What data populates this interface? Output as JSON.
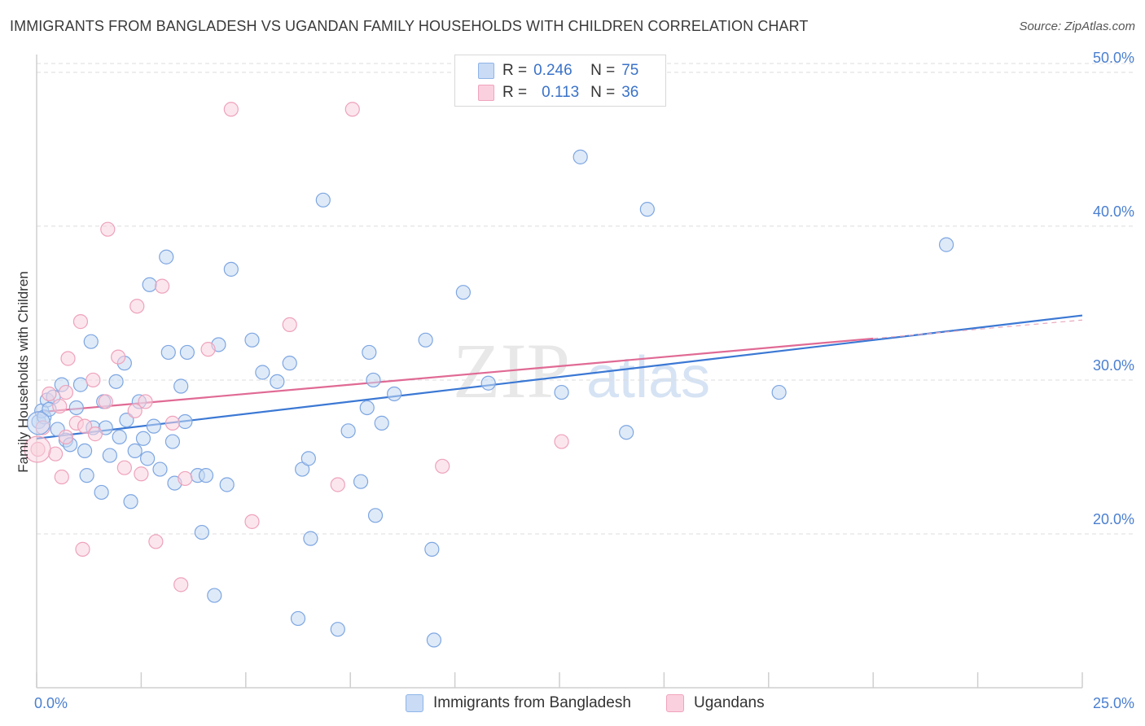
{
  "title": "IMMIGRANTS FROM BANGLADESH VS UGANDAN FAMILY HOUSEHOLDS WITH CHILDREN CORRELATION CHART",
  "source": "Source: ZipAtlas.com",
  "watermark": {
    "zip": "ZIP",
    "atlas": "atlas"
  },
  "legend": {
    "r_label": "R =",
    "n_label": "N =",
    "rows": [
      {
        "r": "0.246",
        "n": "75",
        "color": "#8fb4e8",
        "fill": "#c9dbf5"
      },
      {
        "r": "0.113",
        "n": "36",
        "color": "#f0a3bd",
        "fill": "#fbd0de"
      }
    ]
  },
  "bottom_legend": [
    "Immigrants from Bangladesh",
    "Ugandans"
  ],
  "chart_data": {
    "type": "scatter",
    "title": "IMMIGRANTS FROM BANGLADESH VS UGANDAN FAMILY HOUSEHOLDS WITH CHILDREN CORRELATION CHART",
    "xlabel": "",
    "ylabel": "Family Households with Children",
    "xlim": [
      0,
      25
    ],
    "ylim": [
      10,
      51
    ],
    "x_tick_labels": [
      "0.0%",
      "25.0%"
    ],
    "y_ticks": [
      20,
      30,
      40,
      50
    ],
    "y_tick_labels": [
      "20.0%",
      "30.0%",
      "40.0%",
      "50.0%"
    ],
    "grid": true,
    "legend_position": "top-center",
    "series": [
      {
        "name": "Immigrants from Bangladesh",
        "color": "#3b78d4",
        "marker_fill": "#c5d8f3",
        "marker_stroke": "#7da6e2",
        "trend": {
          "x": [
            0,
            25
          ],
          "y": [
            26.2,
            34.2
          ]
        },
        "points": [
          [
            0.05,
            27.3
          ],
          [
            0.12,
            28.0
          ],
          [
            0.18,
            27.6
          ],
          [
            0.25,
            28.7
          ],
          [
            0.4,
            28.9
          ],
          [
            0.5,
            26.8
          ],
          [
            0.6,
            29.7
          ],
          [
            0.7,
            26.1
          ],
          [
            0.8,
            25.8
          ],
          [
            0.95,
            28.2
          ],
          [
            1.05,
            29.7
          ],
          [
            1.15,
            25.4
          ],
          [
            1.2,
            23.8
          ],
          [
            1.3,
            32.5
          ],
          [
            1.35,
            26.9
          ],
          [
            1.55,
            22.7
          ],
          [
            1.6,
            28.6
          ],
          [
            1.65,
            26.9
          ],
          [
            1.75,
            25.1
          ],
          [
            1.9,
            29.9
          ],
          [
            1.98,
            26.3
          ],
          [
            2.1,
            31.1
          ],
          [
            2.15,
            27.4
          ],
          [
            2.25,
            22.1
          ],
          [
            2.35,
            25.4
          ],
          [
            2.45,
            28.6
          ],
          [
            2.55,
            26.2
          ],
          [
            2.65,
            24.9
          ],
          [
            2.7,
            36.2
          ],
          [
            2.8,
            27.0
          ],
          [
            2.95,
            24.2
          ],
          [
            3.1,
            38.0
          ],
          [
            3.15,
            31.8
          ],
          [
            3.25,
            26.0
          ],
          [
            3.3,
            23.3
          ],
          [
            3.45,
            29.6
          ],
          [
            3.55,
            27.3
          ],
          [
            3.6,
            31.8
          ],
          [
            3.85,
            23.8
          ],
          [
            3.95,
            20.1
          ],
          [
            4.05,
            23.8
          ],
          [
            4.25,
            16.0
          ],
          [
            4.35,
            32.3
          ],
          [
            4.55,
            23.2
          ],
          [
            4.65,
            37.2
          ],
          [
            5.15,
            32.6
          ],
          [
            5.4,
            30.5
          ],
          [
            5.75,
            29.9
          ],
          [
            6.05,
            31.1
          ],
          [
            6.25,
            14.5
          ],
          [
            6.35,
            24.2
          ],
          [
            6.5,
            24.9
          ],
          [
            6.55,
            19.7
          ],
          [
            6.85,
            41.7
          ],
          [
            7.2,
            13.8
          ],
          [
            7.45,
            26.7
          ],
          [
            7.75,
            23.4
          ],
          [
            7.9,
            28.2
          ],
          [
            7.95,
            31.8
          ],
          [
            8.05,
            30.0
          ],
          [
            8.1,
            21.2
          ],
          [
            8.25,
            27.2
          ],
          [
            8.55,
            29.1
          ],
          [
            9.3,
            32.6
          ],
          [
            9.45,
            19.0
          ],
          [
            9.5,
            13.1
          ],
          [
            10.2,
            35.7
          ],
          [
            10.8,
            29.8
          ],
          [
            12.55,
            29.2
          ],
          [
            13.0,
            44.5
          ],
          [
            14.1,
            26.6
          ],
          [
            14.6,
            41.1
          ],
          [
            17.75,
            29.2
          ],
          [
            21.75,
            38.8
          ],
          [
            0.3,
            28.1
          ]
        ]
      },
      {
        "name": "Ugandans",
        "color": "#e06a94",
        "marker_fill": "#f9d1de",
        "marker_stroke": "#eea2bb",
        "trend": {
          "x": [
            0,
            20
          ],
          "y": [
            27.9,
            32.7
          ]
        },
        "points": [
          [
            0.03,
            25.5
          ],
          [
            0.15,
            26.9
          ],
          [
            0.3,
            29.1
          ],
          [
            0.45,
            25.2
          ],
          [
            0.55,
            28.3
          ],
          [
            0.6,
            23.7
          ],
          [
            0.7,
            29.2
          ],
          [
            0.75,
            31.4
          ],
          [
            0.95,
            27.2
          ],
          [
            1.05,
            33.8
          ],
          [
            1.1,
            19.0
          ],
          [
            1.15,
            27.0
          ],
          [
            1.35,
            30.0
          ],
          [
            1.4,
            26.5
          ],
          [
            1.65,
            28.6
          ],
          [
            1.7,
            39.8
          ],
          [
            1.95,
            31.5
          ],
          [
            2.1,
            24.3
          ],
          [
            2.35,
            28.0
          ],
          [
            2.4,
            34.8
          ],
          [
            2.5,
            23.9
          ],
          [
            2.6,
            28.6
          ],
          [
            2.85,
            19.5
          ],
          [
            3.0,
            36.1
          ],
          [
            3.25,
            27.2
          ],
          [
            3.45,
            16.7
          ],
          [
            3.55,
            23.6
          ],
          [
            4.1,
            32.0
          ],
          [
            4.65,
            47.6
          ],
          [
            5.15,
            20.8
          ],
          [
            6.05,
            33.6
          ],
          [
            7.2,
            23.2
          ],
          [
            7.55,
            47.6
          ],
          [
            9.7,
            24.4
          ],
          [
            12.55,
            26.0
          ],
          [
            0.7,
            26.3
          ]
        ]
      }
    ]
  }
}
